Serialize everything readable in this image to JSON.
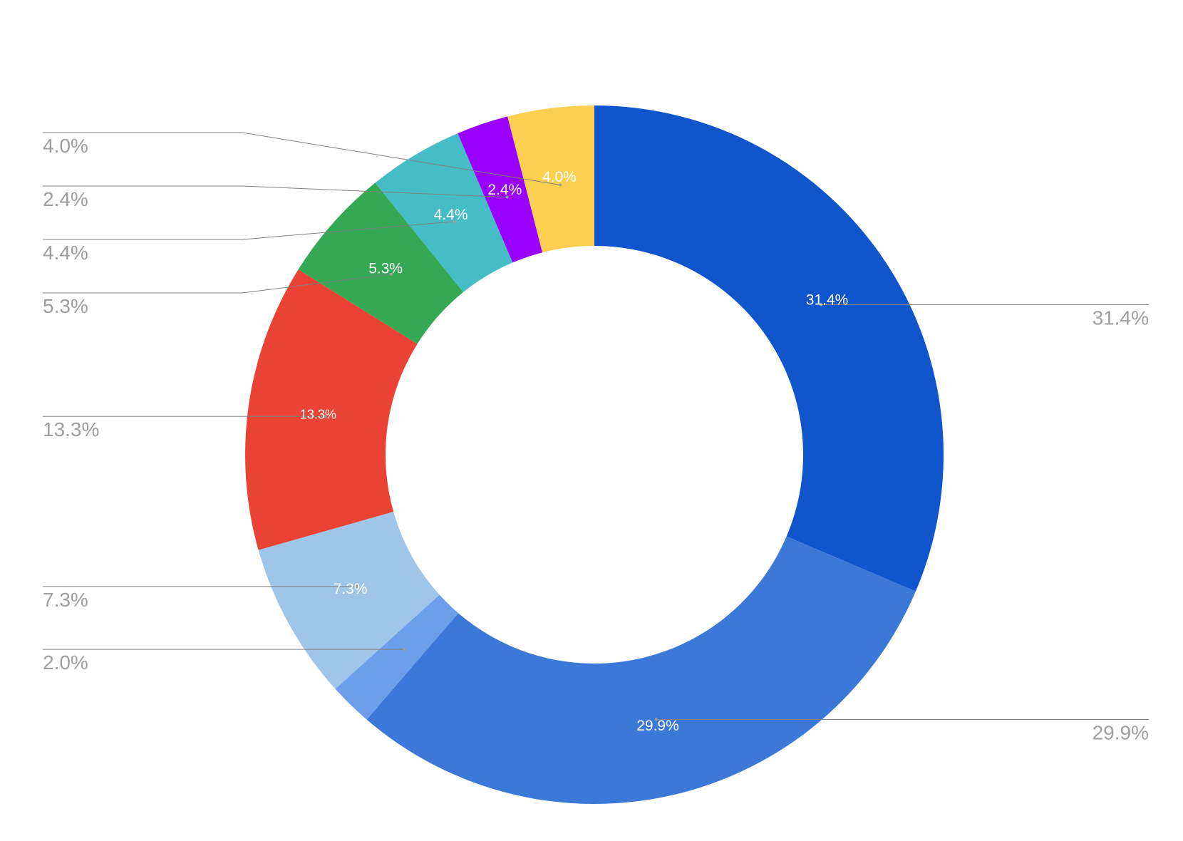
{
  "chart_data": {
    "type": "pie",
    "donut": true,
    "slices": [
      {
        "value": 31.4,
        "label": "31.4%",
        "color": "#1155cc"
      },
      {
        "value": 29.9,
        "label": "29.9%",
        "color": "#3c78d8"
      },
      {
        "value": 2.0,
        "label": "2.0%",
        "color": "#6d9eeb"
      },
      {
        "value": 7.3,
        "label": "7.3%",
        "color": "#9fc5e8"
      },
      {
        "value": 13.3,
        "label": "13.3%",
        "color": "#ea4335"
      },
      {
        "value": 5.3,
        "label": "5.3%",
        "color": "#34a853"
      },
      {
        "value": 4.4,
        "label": "4.4%",
        "color": "#46bdc6"
      },
      {
        "value": 2.4,
        "label": "2.4%",
        "color": "#9900ff"
      },
      {
        "value": 4.0,
        "label": "4.0%",
        "color": "#fbcf4f"
      }
    ]
  }
}
